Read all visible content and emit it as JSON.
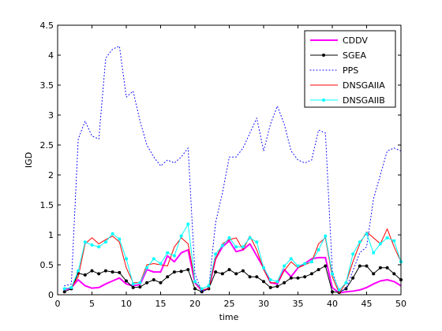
{
  "chart_data": {
    "type": "line",
    "xlabel": "time",
    "ylabel": "IGD",
    "xlim": [
      0,
      50
    ],
    "ylim": [
      0,
      4.5
    ],
    "xticks": [
      0,
      5,
      10,
      15,
      20,
      25,
      30,
      35,
      40,
      45,
      50
    ],
    "yticks": [
      0,
      0.5,
      1,
      1.5,
      2,
      2.5,
      3,
      3.5,
      4,
      4.5
    ],
    "x": [
      1,
      2,
      3,
      4,
      5,
      6,
      7,
      8,
      9,
      10,
      11,
      12,
      13,
      14,
      15,
      16,
      17,
      18,
      19,
      20,
      21,
      22,
      23,
      24,
      25,
      26,
      27,
      28,
      29,
      30,
      31,
      32,
      33,
      34,
      35,
      36,
      37,
      38,
      39,
      40,
      41,
      42,
      43,
      44,
      45,
      46,
      47,
      48,
      49,
      50
    ],
    "legend_position": "top-right",
    "grid": false,
    "series": [
      {
        "name": "CDDV",
        "color": "#ff00ff",
        "style": "solid",
        "width": 2,
        "marker": "none",
        "values": [
          0.08,
          0.12,
          0.25,
          0.15,
          0.11,
          0.12,
          0.18,
          0.23,
          0.28,
          0.18,
          0.15,
          0.17,
          0.42,
          0.38,
          0.38,
          0.65,
          0.55,
          0.7,
          0.75,
          0.2,
          0.07,
          0.1,
          0.6,
          0.8,
          0.9,
          0.72,
          0.75,
          0.85,
          0.65,
          0.45,
          0.2,
          0.18,
          0.42,
          0.3,
          0.45,
          0.52,
          0.6,
          0.62,
          0.62,
          0.12,
          0.03,
          0.05,
          0.06,
          0.08,
          0.12,
          0.18,
          0.23,
          0.25,
          0.22,
          0.15
        ]
      },
      {
        "name": "SGEA",
        "color": "#000000",
        "style": "solid",
        "width": 1,
        "marker": "dot",
        "values": [
          0.05,
          0.1,
          0.36,
          0.33,
          0.4,
          0.35,
          0.4,
          0.38,
          0.37,
          0.23,
          0.12,
          0.13,
          0.2,
          0.25,
          0.2,
          0.3,
          0.38,
          0.39,
          0.42,
          0.1,
          0.05,
          0.1,
          0.38,
          0.35,
          0.42,
          0.35,
          0.4,
          0.3,
          0.3,
          0.22,
          0.12,
          0.14,
          0.2,
          0.28,
          0.28,
          0.3,
          0.35,
          0.42,
          0.48,
          0.05,
          0.04,
          0.1,
          0.28,
          0.48,
          0.48,
          0.35,
          0.45,
          0.45,
          0.35,
          0.25
        ]
      },
      {
        "name": "PPS",
        "color": "#0000ff",
        "style": "dotted",
        "width": 1,
        "marker": "none",
        "values": [
          0.15,
          0.18,
          2.6,
          2.9,
          2.65,
          2.6,
          3.95,
          4.1,
          4.15,
          3.3,
          3.4,
          2.9,
          2.5,
          2.3,
          2.15,
          2.25,
          2.2,
          2.3,
          2.45,
          0.35,
          0.05,
          0.1,
          1.2,
          1.7,
          2.3,
          2.3,
          2.45,
          2.7,
          2.95,
          2.4,
          2.85,
          3.15,
          2.85,
          2.4,
          2.25,
          2.2,
          2.25,
          2.75,
          2.7,
          0.4,
          0.05,
          0.1,
          0.4,
          0.7,
          0.8,
          1.6,
          2.0,
          2.4,
          2.45,
          2.4
        ]
      },
      {
        "name": "DNSGAIIA",
        "color": "#ff0000",
        "style": "solid",
        "width": 1,
        "marker": "none",
        "values": [
          0.1,
          0.12,
          0.3,
          0.85,
          0.95,
          0.85,
          0.92,
          0.98,
          0.88,
          0.45,
          0.2,
          0.2,
          0.5,
          0.52,
          0.5,
          0.48,
          0.8,
          0.95,
          0.85,
          0.22,
          0.08,
          0.1,
          0.6,
          0.85,
          0.92,
          0.95,
          0.75,
          0.98,
          0.75,
          0.42,
          0.2,
          0.2,
          0.4,
          0.55,
          0.45,
          0.5,
          0.55,
          0.85,
          0.95,
          0.3,
          0.03,
          0.2,
          0.55,
          0.85,
          1.05,
          0.95,
          0.85,
          1.1,
          0.8,
          0.55
        ]
      },
      {
        "name": "DNSGAIIB",
        "color": "#00ffff",
        "style": "solid",
        "width": 1,
        "marker": "dot",
        "values": [
          0.1,
          0.12,
          0.4,
          0.88,
          0.83,
          0.8,
          0.88,
          1.02,
          0.93,
          0.6,
          0.18,
          0.2,
          0.45,
          0.6,
          0.52,
          0.7,
          0.65,
          0.98,
          1.18,
          0.22,
          0.1,
          0.15,
          0.68,
          0.82,
          0.95,
          0.8,
          0.8,
          0.95,
          0.88,
          0.45,
          0.25,
          0.22,
          0.48,
          0.6,
          0.48,
          0.52,
          0.55,
          0.75,
          0.98,
          0.35,
          0.08,
          0.2,
          0.68,
          0.88,
          1.02,
          0.7,
          0.85,
          0.95,
          0.9,
          0.55
        ]
      }
    ]
  }
}
